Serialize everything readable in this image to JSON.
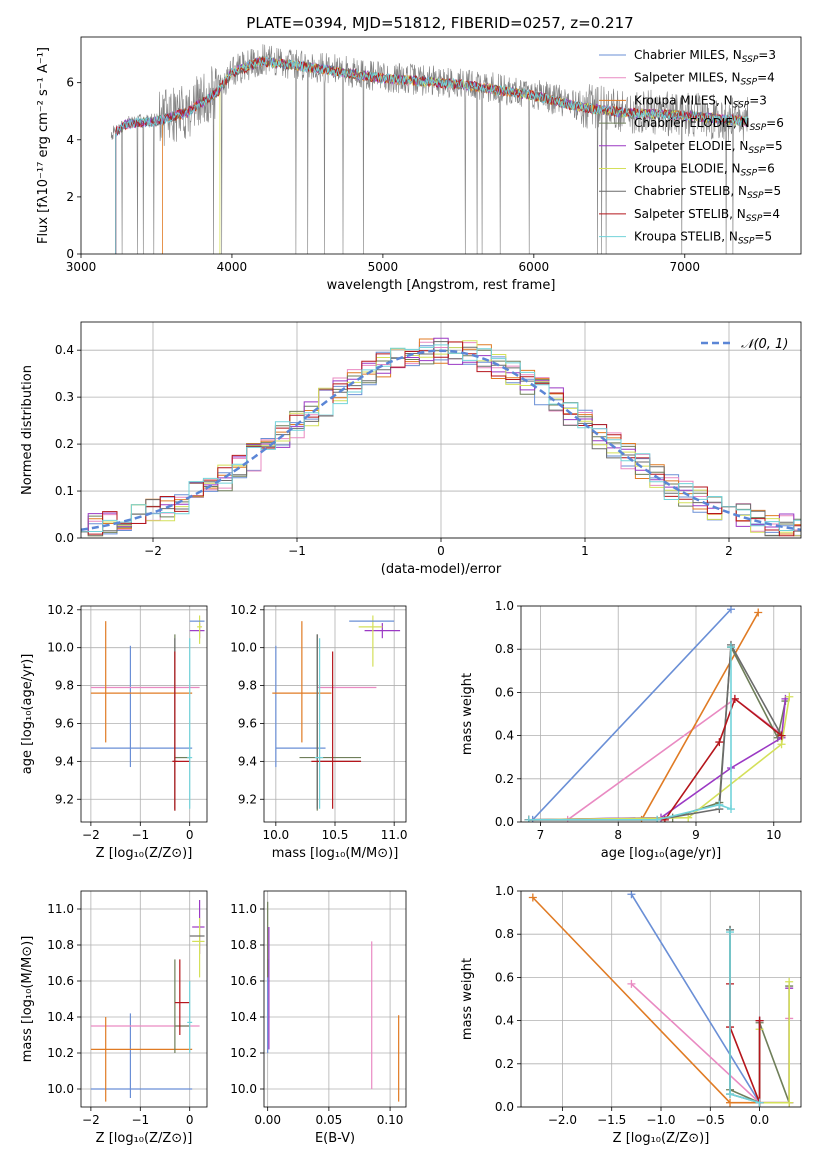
{
  "title": "PLATE=0394, MJD=51812, FIBERID=0257, z=0.217",
  "palette": [
    "#6a8fd6",
    "#e98ac2",
    "#e07b24",
    "#6f7f5a",
    "#9b39c4",
    "#d4e05a",
    "#6b6b6b",
    "#b5161c",
    "#72d3da"
  ],
  "chart_data": [
    {
      "panel": "spectrum",
      "type": "line",
      "xlabel": "wavelength [Angstrom, rest frame]",
      "ylabel": "Flux [fλ10⁻¹⁷ erg cm⁻² s⁻¹ A⁻¹]",
      "xlim": [
        3000,
        7770
      ],
      "ylim": [
        0,
        7.6
      ],
      "xticks": [
        3000,
        4000,
        5000,
        6000,
        7000
      ],
      "yticks": [
        0,
        2,
        4,
        6
      ],
      "legend": "top-right",
      "grid": false,
      "legend_entries": [
        {
          "model": "Chabrier MILES, N",
          "sub": "SSP",
          "n": "=3"
        },
        {
          "model": "Salpeter MILES, N",
          "sub": "SSP",
          "n": "=4"
        },
        {
          "model": "Kroupa MILES, N",
          "sub": "SSP",
          "n": "=3"
        },
        {
          "model": "Chabrier ELODIE, N",
          "sub": "SSP",
          "n": "=6"
        },
        {
          "model": "Salpeter ELODIE, N",
          "sub": "SSP",
          "n": "=5"
        },
        {
          "model": "Kroupa ELODIE, N",
          "sub": "SSP",
          "n": "=6"
        },
        {
          "model": "Chabrier STELIB, N",
          "sub": "SSP",
          "n": "=5"
        },
        {
          "model": "Salpeter STELIB, N",
          "sub": "SSP",
          "n": "=4"
        },
        {
          "model": "Kroupa STELIB, N",
          "sub": "SSP",
          "n": "=5"
        }
      ],
      "observed_envelope": {
        "x": [
          3200,
          3300,
          3500,
          3700,
          3900,
          4000,
          4200,
          4500,
          5000,
          5500,
          6000,
          6300,
          6600,
          7000,
          7400
        ],
        "y": [
          4.2,
          4.6,
          4.7,
          5.0,
          5.7,
          6.4,
          6.8,
          6.6,
          6.2,
          6.0,
          5.6,
          5.2,
          5.0,
          4.9,
          4.7
        ]
      },
      "model_start": [
        3230,
        3230,
        3540,
        3230,
        3230,
        3920,
        3230,
        3230,
        3230
      ]
    },
    {
      "panel": "residuals",
      "type": "histogram",
      "xlabel": "(data-model)/error",
      "ylabel": "Normed distribution",
      "xlim": [
        -2.5,
        2.5
      ],
      "ylim": [
        0,
        0.46
      ],
      "xticks": [
        -2,
        -1,
        0,
        1,
        2
      ],
      "yticks": [
        0.0,
        0.1,
        0.2,
        0.3,
        0.4
      ],
      "grid": true,
      "legend": "top-right",
      "reference_label": "𝒩(0, 1)",
      "reference": {
        "mu": 0,
        "sigma": 1
      }
    },
    {
      "panel": "age_vs_Z",
      "type": "errorbar",
      "xlabel": "Z [log₁₀(Z/Z⊙)]",
      "ylabel": "age  [log₁₀(age/yr)]",
      "xlim": [
        -2.2,
        0.35
      ],
      "ylim": [
        9.08,
        10.22
      ],
      "xticks": [
        -2,
        -1,
        0
      ],
      "yticks": [
        9.2,
        9.4,
        9.6,
        9.8,
        10.0,
        10.2
      ],
      "grid": true,
      "points": [
        {
          "x": -1.2,
          "xl": -2.0,
          "xh": 0.05,
          "y": 9.47,
          "yl": 9.37,
          "yh": 10.01
        },
        {
          "x": -1.0,
          "xl": -2.0,
          "xh": 0.2,
          "y": 9.79,
          "yl": 9.79,
          "yh": 9.79
        },
        {
          "x": -1.7,
          "xl": -2.0,
          "xh": 0.05,
          "y": 9.76,
          "yl": 9.5,
          "yh": 10.14
        },
        {
          "x": -0.3,
          "xl": -0.3,
          "xh": 0.0,
          "y": 9.42,
          "yl": 9.14,
          "yh": 10.07
        },
        {
          "x": 0.2,
          "xl": 0.0,
          "xh": 0.3,
          "y": 10.09,
          "yl": 10.05,
          "yh": 10.13
        },
        {
          "x": 0.2,
          "xl": 0.15,
          "xh": 0.25,
          "y": 10.11,
          "yl": 10.02,
          "yh": 10.17
        },
        {
          "x": -0.3,
          "xl": -0.35,
          "xh": -0.25,
          "y": 9.4,
          "yl": 9.15,
          "yh": 10.05
        },
        {
          "x": -0.3,
          "xl": -0.35,
          "xh": 0.0,
          "y": 9.4,
          "yl": 9.14,
          "yh": 9.98
        },
        {
          "x": 0.0,
          "xl": -0.05,
          "xh": 0.05,
          "y": 9.42,
          "yl": 9.15,
          "yh": 10.05
        },
        {
          "x": 0.15,
          "xl": 0.0,
          "xh": 0.3,
          "y": 10.14,
          "yl": 10.14,
          "yh": 10.14
        }
      ]
    },
    {
      "panel": "age_vs_mass",
      "type": "errorbar",
      "xlabel": "mass [log₁₀(M/M⊙)]",
      "ylabel": "",
      "xlim": [
        9.9,
        11.1
      ],
      "ylim": [
        9.08,
        10.22
      ],
      "xticks": [
        10.0,
        10.5,
        11.0
      ],
      "yticks": [
        9.2,
        9.4,
        9.6,
        9.8,
        10.0,
        10.2
      ],
      "grid": true,
      "points": [
        {
          "x": 10.0,
          "xl": 10.0,
          "xh": 10.42,
          "y": 9.47,
          "yl": 9.37,
          "yh": 10.01
        },
        {
          "x": 10.35,
          "xl": 10.35,
          "xh": 10.85,
          "y": 9.79,
          "yl": 9.79,
          "yh": 9.79
        },
        {
          "x": 10.22,
          "xl": 9.97,
          "xh": 10.47,
          "y": 9.76,
          "yl": 9.5,
          "yh": 10.14
        },
        {
          "x": 10.35,
          "xl": 10.2,
          "xh": 10.72,
          "y": 9.42,
          "yl": 9.14,
          "yh": 10.07
        },
        {
          "x": 10.9,
          "xl": 10.75,
          "xh": 11.05,
          "y": 10.09,
          "yl": 10.05,
          "yh": 10.13
        },
        {
          "x": 10.82,
          "xl": 10.7,
          "xh": 10.9,
          "y": 10.11,
          "yl": 9.9,
          "yh": 10.17
        },
        {
          "x": 10.35,
          "xl": 10.35,
          "xh": 10.72,
          "y": 9.4,
          "yl": 9.15,
          "yh": 10.07
        },
        {
          "x": 10.48,
          "xl": 10.3,
          "xh": 10.72,
          "y": 9.4,
          "yl": 9.15,
          "yh": 9.98
        },
        {
          "x": 10.37,
          "xl": 10.33,
          "xh": 10.4,
          "y": 9.42,
          "yl": 9.15,
          "yh": 10.05
        },
        {
          "x": 10.8,
          "xl": 10.62,
          "xh": 11.0,
          "y": 10.14,
          "yl": 10.14,
          "yh": 10.14
        }
      ]
    },
    {
      "panel": "cumulative_mass_vs_age",
      "type": "line",
      "xlabel": "age  [log₁₀(age/yr)]",
      "ylabel": "mass weight",
      "xlim": [
        6.75,
        10.35
      ],
      "ylim": [
        0,
        1.0
      ],
      "xticks": [
        7,
        8,
        9,
        10
      ],
      "yticks": [
        0.0,
        0.2,
        0.4,
        0.6,
        0.8,
        1.0
      ],
      "grid": true,
      "series": [
        {
          "x": [
            6.9,
            9.45
          ],
          "y": [
            0.01,
            0.985
          ]
        },
        {
          "x": [
            7.35,
            9.5,
            10.05
          ],
          "y": [
            0.01,
            0.57,
            0.42
          ]
        },
        {
          "x": [
            6.85,
            8.3,
            9.8
          ],
          "y": [
            0.01,
            0.01,
            0.97
          ]
        },
        {
          "x": [
            6.85,
            8.7,
            9.3,
            9.45,
            9.45,
            10.05,
            10.15
          ],
          "y": [
            0.01,
            0.02,
            0.09,
            0.81,
            0.81,
            0.39,
            0.56
          ]
        },
        {
          "x": [
            6.85,
            8.55,
            9.45,
            10.1,
            10.15
          ],
          "y": [
            0.01,
            0.02,
            0.25,
            0.39,
            0.57
          ]
        },
        {
          "x": [
            6.85,
            8.9,
            10.1,
            10.2
          ],
          "y": [
            0.01,
            0.02,
            0.36,
            0.58
          ]
        },
        {
          "x": [
            6.85,
            8.5,
            9.3,
            9.45,
            10.1
          ],
          "y": [
            0.01,
            0.01,
            0.06,
            0.82,
            0.4
          ]
        },
        {
          "x": [
            6.85,
            8.6,
            9.3,
            9.5,
            10.1
          ],
          "y": [
            0.01,
            0.01,
            0.37,
            0.57,
            0.4
          ]
        },
        {
          "x": [
            6.85,
            8.5,
            9.3,
            9.45,
            9.45
          ],
          "y": [
            0.01,
            0.01,
            0.08,
            0.06,
            0.81
          ]
        }
      ]
    },
    {
      "panel": "mass_vs_Z",
      "type": "errorbar",
      "xlabel": "Z [log₁₀(Z/Z⊙)]",
      "ylabel": "mass [log₁₀(M/M⊙)]",
      "xlim": [
        -2.2,
        0.35
      ],
      "ylim": [
        9.9,
        11.1
      ],
      "xticks": [
        -2,
        -1,
        0
      ],
      "yticks": [
        10.0,
        10.2,
        10.4,
        10.6,
        10.8,
        11.0
      ],
      "grid": true,
      "points": [
        {
          "x": -1.2,
          "xl": -2.0,
          "xh": 0.05,
          "y": 10.0,
          "yl": 9.95,
          "yh": 10.42
        },
        {
          "x": -1.0,
          "xl": -2.0,
          "xh": 0.2,
          "y": 10.35,
          "yl": 10.35,
          "yh": 10.35
        },
        {
          "x": -1.7,
          "xl": -2.0,
          "xh": 0.05,
          "y": 10.22,
          "yl": 9.93,
          "yh": 10.4
        },
        {
          "x": -0.3,
          "xl": -0.3,
          "xh": 0.0,
          "y": 10.35,
          "yl": 10.2,
          "yh": 10.72
        },
        {
          "x": 0.2,
          "xl": 0.05,
          "xh": 0.3,
          "y": 10.9,
          "yl": 10.75,
          "yh": 11.05
        },
        {
          "x": 0.2,
          "xl": 0.05,
          "xh": 0.3,
          "y": 10.82,
          "yl": 10.62,
          "yh": 10.95
        },
        {
          "x": 0.15,
          "xl": 0.0,
          "xh": 0.3,
          "y": 10.85,
          "yl": 10.85,
          "yh": 10.85
        },
        {
          "x": -0.2,
          "xl": -0.3,
          "xh": 0.0,
          "y": 10.48,
          "yl": 10.3,
          "yh": 10.72
        },
        {
          "x": 0.0,
          "xl": -0.05,
          "xh": 0.05,
          "y": 10.37,
          "yl": 10.2,
          "yh": 10.6
        }
      ]
    },
    {
      "panel": "mass_vs_EBV",
      "type": "errorbar",
      "xlabel": "E(B-V)",
      "ylabel": "",
      "xlim": [
        -0.003,
        0.113
      ],
      "ylim": [
        9.9,
        11.1
      ],
      "xticks": [
        0.0,
        0.05,
        0.1
      ],
      "yticks": [
        10.0,
        10.2,
        10.4,
        10.6,
        10.8,
        11.0
      ],
      "grid": true,
      "points": [
        {
          "x": 0.0,
          "xl": 0.0,
          "xh": 0.0,
          "y": 10.4,
          "yl": 10.2,
          "yh": 10.72
        },
        {
          "x": 0.085,
          "xl": 0.085,
          "xh": 0.085,
          "y": 10.4,
          "yl": 10.0,
          "yh": 10.82
        },
        {
          "x": 0.107,
          "xl": 0.107,
          "xh": 0.107,
          "y": 10.2,
          "yl": 9.93,
          "yh": 10.41
        },
        {
          "x": 0.0,
          "xl": 0.0,
          "xh": 0.0,
          "y": 10.8,
          "yl": 10.62,
          "yh": 11.04
        },
        {
          "x": 0.001,
          "xl": 0.001,
          "xh": 0.001,
          "y": 10.6,
          "yl": 10.22,
          "yh": 10.9
        }
      ]
    },
    {
      "panel": "cumulative_mass_vs_Z",
      "type": "line",
      "xlabel": "Z [log₁₀(Z/Z⊙)]",
      "ylabel": "mass weight",
      "xlim": [
        -2.42,
        0.42
      ],
      "ylim": [
        0,
        1.0
      ],
      "xticks": [
        -2.0,
        -1.5,
        -1.0,
        -0.5,
        0.0
      ],
      "yticks": [
        0.0,
        0.2,
        0.4,
        0.6,
        0.8,
        1.0
      ],
      "grid": true,
      "series": [
        {
          "x": [
            -1.3,
            0.0
          ],
          "y": [
            0.985,
            0.02
          ]
        },
        {
          "x": [
            -1.3,
            0.0,
            0.3,
            0.3
          ],
          "y": [
            0.57,
            0.02,
            0.02,
            0.41
          ]
        },
        {
          "x": [
            -2.3,
            -0.3,
            0.0
          ],
          "y": [
            0.97,
            0.02,
            0.02
          ]
        },
        {
          "x": [
            -0.3,
            -0.3,
            0.0,
            0.0,
            0.3,
            0.3
          ],
          "y": [
            0.82,
            0.08,
            0.02,
            0.39,
            0.02,
            0.56
          ]
        },
        {
          "x": [
            0.0,
            0.0,
            0.3,
            0.3
          ],
          "y": [
            0.4,
            0.02,
            0.02,
            0.55
          ]
        },
        {
          "x": [
            0.0,
            0.0,
            0.3,
            0.3
          ],
          "y": [
            0.36,
            0.02,
            0.02,
            0.58
          ]
        },
        {
          "x": [
            -0.3,
            -0.3,
            0.0,
            0.0
          ],
          "y": [
            0.82,
            0.06,
            0.02,
            0.4
          ]
        },
        {
          "x": [
            -0.3,
            -0.3,
            0.0,
            0.0
          ],
          "y": [
            0.57,
            0.37,
            0.02,
            0.4
          ]
        },
        {
          "x": [
            -0.3,
            -0.3,
            0.0
          ],
          "y": [
            0.81,
            0.06,
            0.02
          ]
        }
      ]
    }
  ]
}
